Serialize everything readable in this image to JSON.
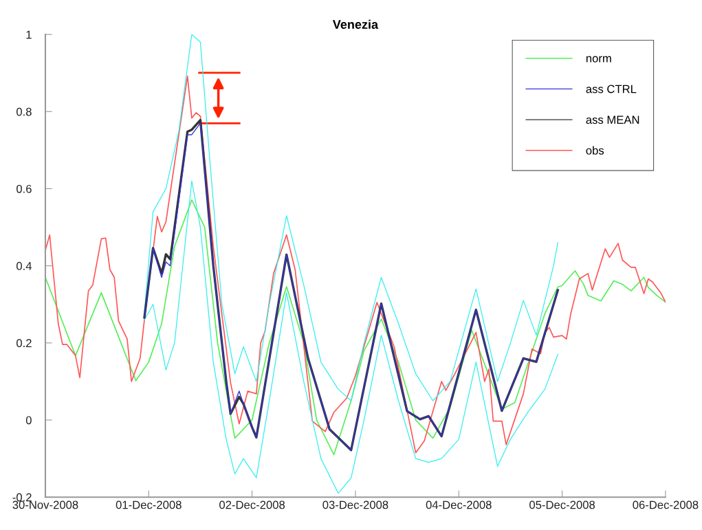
{
  "chart_data": {
    "type": "line",
    "title": "Venezia",
    "xlim": [
      "2008-11-30",
      "2008-12-06"
    ],
    "xticks": [
      {
        "value": "2008-11-30",
        "label": "30-Nov-2008"
      },
      {
        "value": "2008-12-01",
        "label": "01-Dec-2008"
      },
      {
        "value": "2008-12-02",
        "label": "02-Dec-2008"
      },
      {
        "value": "2008-12-03",
        "label": "03-Dec-2008"
      },
      {
        "value": "2008-12-04",
        "label": "04-Dec-2008"
      },
      {
        "value": "2008-12-05",
        "label": "05-Dec-2008"
      },
      {
        "value": "2008-12-06",
        "label": "06-Dec-2008"
      }
    ],
    "ylim": [
      -0.2,
      1
    ],
    "yticks": [
      {
        "value": -0.2,
        "label": "-0.2"
      },
      0,
      0.2,
      0.4,
      0.6,
      0.8,
      1
    ],
    "grid": false,
    "legend": "top right",
    "marker": "none",
    "line_style": "solid",
    "series": [
      {
        "color": "#33eeee",
        "x": [
          "2008-11-30T23:00",
          "2008-12-01T01:00",
          "2008-12-01T04:00",
          "2008-12-01T07:00",
          "2008-12-01T10:00",
          "2008-12-01T12:00",
          "2008-12-01T14:00",
          "2008-12-01T17:00",
          "2008-12-01T20:00",
          "2008-12-01T22:00",
          "2008-12-02T01:00",
          "2008-12-02T04:00",
          "2008-12-02T08:00",
          "2008-12-02T12:00",
          "2008-12-02T16:00",
          "2008-12-02T20:00",
          "2008-12-02T23:00",
          "2008-12-03T02:00",
          "2008-12-03T06:00",
          "2008-12-03T10:00",
          "2008-12-03T14:00",
          "2008-12-03T18:00",
          "2008-12-03T22:00",
          "2008-12-04T04:00",
          "2008-12-04T09:00",
          "2008-12-04T12:00",
          "2008-12-04T15:00",
          "2008-12-04T18:00",
          "2008-12-04T22:00",
          "2008-12-04T23:00"
        ],
        "values": [
          0.28,
          0.54,
          0.6,
          0.75,
          1.0,
          0.98,
          0.7,
          0.3,
          0.12,
          0.19,
          0.1,
          0.3,
          0.53,
          0.35,
          0.15,
          0.08,
          0.05,
          0.2,
          0.37,
          0.25,
          0.12,
          0.05,
          0.1,
          0.34,
          0.1,
          0.2,
          0.31,
          0.22,
          0.4,
          0.46
        ]
      },
      {
        "color": "#33eeee",
        "x": [
          "2008-11-30T23:00",
          "2008-12-01T01:00",
          "2008-12-01T04:00",
          "2008-12-01T06:00",
          "2008-12-01T10:00",
          "2008-12-01T12:00",
          "2008-12-01T15:00",
          "2008-12-01T18:00",
          "2008-12-01T20:00",
          "2008-12-01T22:00",
          "2008-12-02T01:00",
          "2008-12-02T04:00",
          "2008-12-02T08:00",
          "2008-12-02T12:00",
          "2008-12-02T16:00",
          "2008-12-02T20:00",
          "2008-12-02T23:00",
          "2008-12-03T02:00",
          "2008-12-03T06:00",
          "2008-12-03T10:00",
          "2008-12-03T14:00",
          "2008-12-03T17:00",
          "2008-12-03T20:00",
          "2008-12-04T00:00",
          "2008-12-04T04:00",
          "2008-12-04T09:00",
          "2008-12-04T12:00",
          "2008-12-04T16:00",
          "2008-12-04T20:00",
          "2008-12-04T23:00"
        ],
        "values": [
          0.26,
          0.3,
          0.13,
          0.2,
          0.62,
          0.5,
          0.15,
          -0.05,
          -0.14,
          -0.1,
          -0.15,
          0.05,
          0.33,
          0.1,
          -0.1,
          -0.19,
          -0.15,
          0.0,
          0.22,
          0.05,
          -0.1,
          -0.11,
          -0.1,
          -0.05,
          0.15,
          -0.12,
          -0.05,
          0.02,
          0.08,
          0.17
        ]
      },
      {
        "name": "norm",
        "color": "#55ee55",
        "x": [
          "2008-11-30T00:00",
          "2008-11-30T07:00",
          "2008-11-30T13:00",
          "2008-11-30T21:00",
          "2008-12-01T00:00",
          "2008-12-01T03:00",
          "2008-12-01T06:00",
          "2008-12-01T10:00",
          "2008-12-01T13:00",
          "2008-12-01T16:00",
          "2008-12-01T20:00",
          "2008-12-02T00:00",
          "2008-12-02T04:00",
          "2008-12-02T08:00",
          "2008-12-02T12:00",
          "2008-12-02T15:00",
          "2008-12-02T19:00",
          "2008-12-02T23:00",
          "2008-12-03T02:00",
          "2008-12-03T06:00",
          "2008-12-03T10:00",
          "2008-12-03T14:00",
          "2008-12-03T18:00",
          "2008-12-03T22:00",
          "2008-12-04T03:00",
          "2008-12-04T10:00",
          "2008-12-04T13:00",
          "2008-12-04T20:00",
          "2008-12-04T23:00",
          "2008-12-05T00:00",
          "2008-12-05T03:00",
          "2008-12-05T05:00",
          "2008-12-05T06:00",
          "2008-12-05T09:00",
          "2008-12-05T12:00",
          "2008-12-05T14:00",
          "2008-12-05T16:00",
          "2008-12-05T19:00",
          "2008-12-05T20:00",
          "2008-12-05T22:00",
          "2008-12-06T00:00"
        ],
        "values": [
          0.37,
          0.167,
          0.33,
          0.102,
          0.15,
          0.25,
          0.45,
          0.571,
          0.5,
          0.2,
          -0.047,
          0.0,
          0.2,
          0.346,
          0.2,
          0.0,
          -0.09,
          0.05,
          0.18,
          0.262,
          0.15,
          0.0,
          -0.047,
          0.033,
          0.233,
          0.028,
          0.045,
          0.276,
          0.345,
          0.349,
          0.387,
          0.352,
          0.323,
          0.309,
          0.361,
          0.352,
          0.335,
          0.37,
          0.344,
          0.323,
          0.306
        ]
      },
      {
        "name": "ass CTRL",
        "color": "#3333dd",
        "x": [
          "2008-11-30T23:00",
          "2008-12-01T01:00",
          "2008-12-01T03:00",
          "2008-12-01T04:00",
          "2008-12-01T05:00",
          "2008-12-01T09:00",
          "2008-12-01T10:00",
          "2008-12-01T12:00",
          "2008-12-01T15:00",
          "2008-12-01T18:00",
          "2008-12-01T19:00",
          "2008-12-01T21:00",
          "2008-12-01T22:00",
          "2008-12-02T00:00",
          "2008-12-02T01:00",
          "2008-12-02T08:00",
          "2008-12-02T13:00",
          "2008-12-02T18:00",
          "2008-12-02T23:00",
          "2008-12-03T06:00",
          "2008-12-03T12:00",
          "2008-12-03T15:00",
          "2008-12-03T17:00",
          "2008-12-03T20:00",
          "2008-12-04T04:00",
          "2008-12-04T10:00",
          "2008-12-04T15:00",
          "2008-12-04T18:00",
          "2008-12-04T23:00"
        ],
        "values": [
          0.266,
          0.446,
          0.37,
          0.41,
          0.4,
          0.74,
          0.74,
          0.77,
          0.4,
          0.1,
          0.016,
          0.075,
          0.042,
          -0.019,
          -0.045,
          0.429,
          0.16,
          -0.024,
          -0.078,
          0.302,
          0.023,
          0.002,
          0.01,
          -0.042,
          0.286,
          0.024,
          0.16,
          0.151,
          0.337
        ]
      },
      {
        "name": "ass MEAN",
        "color": "#333333",
        "x": [
          "2008-11-30T23:00",
          "2008-12-01T01:00",
          "2008-12-01T03:00",
          "2008-12-01T04:00",
          "2008-12-01T05:00",
          "2008-12-01T09:00",
          "2008-12-01T10:00",
          "2008-12-01T12:00",
          "2008-12-01T15:00",
          "2008-12-01T18:00",
          "2008-12-01T19:00",
          "2008-12-01T21:00",
          "2008-12-01T22:00",
          "2008-12-02T00:00",
          "2008-12-02T01:00",
          "2008-12-02T08:00",
          "2008-12-02T13:00",
          "2008-12-02T18:00",
          "2008-12-02T23:00",
          "2008-12-03T06:00",
          "2008-12-03T12:00",
          "2008-12-03T15:00",
          "2008-12-03T17:00",
          "2008-12-03T20:00",
          "2008-12-04T04:00",
          "2008-12-04T10:00",
          "2008-12-04T15:00",
          "2008-12-04T18:00",
          "2008-12-04T23:00"
        ],
        "values": [
          0.266,
          0.446,
          0.38,
          0.43,
          0.417,
          0.748,
          0.753,
          0.778,
          0.4,
          0.1,
          0.016,
          0.06,
          0.042,
          -0.019,
          -0.045,
          0.429,
          0.16,
          -0.024,
          -0.078,
          0.302,
          0.023,
          0.002,
          0.01,
          -0.042,
          0.286,
          0.024,
          0.16,
          0.151,
          0.337
        ]
      },
      {
        "name": "obs",
        "color": "#ff5555",
        "x": [
          "2008-11-30T00:00",
          "2008-11-30T01:00",
          "2008-11-30T03:00",
          "2008-11-30T04:00",
          "2008-11-30T05:00",
          "2008-11-30T07:00",
          "2008-11-30T08:00",
          "2008-11-30T10:00",
          "2008-11-30T11:00",
          "2008-11-30T13:00",
          "2008-11-30T14:00",
          "2008-11-30T15:00",
          "2008-11-30T16:00",
          "2008-11-30T17:00",
          "2008-11-30T19:00",
          "2008-11-30T20:00",
          "2008-11-30T22:00",
          "2008-11-30T23:00",
          "2008-12-01T02:00",
          "2008-12-01T03:00",
          "2008-12-01T04:00",
          "2008-12-01T09:00",
          "2008-12-01T10:00",
          "2008-12-01T11:00",
          "2008-12-01T12:00",
          "2008-12-01T15:00",
          "2008-12-01T19:00",
          "2008-12-01T21:00",
          "2008-12-01T23:00",
          "2008-12-02T01:00",
          "2008-12-02T02:00",
          "2008-12-02T03:00",
          "2008-12-02T05:00",
          "2008-12-02T08:00",
          "2008-12-02T10:00",
          "2008-12-02T14:00",
          "2008-12-02T17:00",
          "2008-12-02T19:00",
          "2008-12-02T22:00",
          "2008-12-03T00:00",
          "2008-12-03T05:00",
          "2008-12-03T09:00",
          "2008-12-03T14:00",
          "2008-12-03T16:00",
          "2008-12-03T20:00",
          "2008-12-03T21:00",
          "2008-12-03T23:00",
          "2008-12-04T04:00",
          "2008-12-04T06:00",
          "2008-12-04T07:00",
          "2008-12-04T08:00",
          "2008-12-04T10:00",
          "2008-12-04T11:00",
          "2008-12-04T15:00",
          "2008-12-04T17:00",
          "2008-12-04T19:00",
          "2008-12-04T20:00",
          "2008-12-04T21:00",
          "2008-12-04T22:00",
          "2008-12-05T00:00",
          "2008-12-05T01:00",
          "2008-12-05T02:00",
          "2008-12-05T04:00",
          "2008-12-05T06:00",
          "2008-12-05T07:00",
          "2008-12-05T10:00",
          "2008-12-05T11:00",
          "2008-12-05T13:00",
          "2008-12-05T14:00",
          "2008-12-05T16:00",
          "2008-12-05T17:00",
          "2008-12-05T19:00",
          "2008-12-05T20:00",
          "2008-12-05T21:00",
          "2008-12-05T23:00",
          "2008-12-06T00:00"
        ],
        "values": [
          0.44,
          0.48,
          0.25,
          0.196,
          0.196,
          0.167,
          0.11,
          0.335,
          0.35,
          0.47,
          0.472,
          0.39,
          0.37,
          0.257,
          0.21,
          0.1,
          0.16,
          0.26,
          0.528,
          0.488,
          0.514,
          0.892,
          0.783,
          0.797,
          0.788,
          0.45,
          0.097,
          -0.01,
          0.075,
          0.068,
          0.2,
          0.23,
          0.38,
          0.48,
          0.39,
          -0.003,
          -0.03,
          0.02,
          0.057,
          0.115,
          0.305,
          0.19,
          -0.085,
          -0.054,
          0.1,
          0.077,
          0.118,
          0.227,
          0.1,
          0.132,
          -0.003,
          -0.003,
          -0.064,
          0.068,
          0.184,
          0.172,
          0.227,
          0.24,
          0.215,
          0.219,
          0.21,
          0.276,
          0.366,
          0.38,
          0.337,
          0.444,
          0.422,
          0.458,
          0.415,
          0.396,
          0.396,
          0.328,
          0.366,
          0.358,
          0.328,
          0.306
        ]
      }
    ]
  }
}
